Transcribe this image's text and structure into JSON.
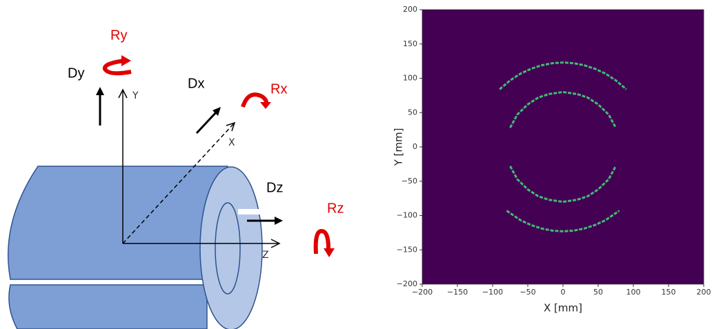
{
  "diagram": {
    "labels": {
      "ry": "Ry",
      "dy": "Dy",
      "y": "Y",
      "dx": "Dx",
      "rx": "Rx",
      "x": "X",
      "dz": "Dz",
      "rz": "Rz",
      "z": "Z"
    }
  },
  "chart_data": {
    "type": "line",
    "xlabel": "X [mm]",
    "ylabel": "Y [mm]",
    "background": "#440154",
    "xlim": [
      -200,
      200
    ],
    "ylim": [
      -200,
      200
    ],
    "xticks": [
      {
        "value": -200,
        "label": "−200"
      },
      {
        "value": -150,
        "label": "−150"
      },
      {
        "value": -100,
        "label": "−100"
      },
      {
        "value": -50,
        "label": "−50"
      },
      0,
      50,
      100,
      150,
      200
    ],
    "yticks": [
      {
        "value": -200,
        "label": "−200"
      },
      {
        "value": -150,
        "label": "−150"
      },
      {
        "value": -100,
        "label": "−100"
      },
      {
        "value": -50,
        "label": "−50"
      },
      0,
      50,
      100,
      150,
      200
    ],
    "series": [
      {
        "color": "#3fbc73",
        "x": [
          -90,
          -75,
          -60,
          -45,
          -30,
          -15,
          0,
          15,
          30,
          45,
          60,
          75,
          90
        ],
        "values": [
          84,
          97,
          107,
          114,
          119,
          122,
          123,
          122,
          119,
          114,
          107,
          97,
          84
        ]
      },
      {
        "color": "#3fbc73",
        "x": [
          -75,
          -65,
          -50,
          -35,
          -20,
          0,
          20,
          35,
          50,
          65,
          75
        ],
        "values": [
          28,
          47,
          62,
          72,
          77,
          80,
          77,
          72,
          62,
          47,
          28
        ]
      },
      {
        "color": "#3fbc73",
        "x": [
          -75,
          -65,
          -50,
          -35,
          -20,
          0,
          20,
          35,
          50,
          65,
          75
        ],
        "values": [
          -28,
          -47,
          -62,
          -72,
          -77,
          -80,
          -77,
          -72,
          -62,
          -47,
          -28
        ]
      },
      {
        "color": "#3fbc73",
        "x": [
          -80,
          -60,
          -45,
          -30,
          -15,
          0,
          15,
          30,
          45,
          60,
          80
        ],
        "values": [
          -93,
          -107,
          -114,
          -119,
          -122,
          -123,
          -122,
          -119,
          -114,
          -107,
          -93
        ]
      }
    ]
  }
}
